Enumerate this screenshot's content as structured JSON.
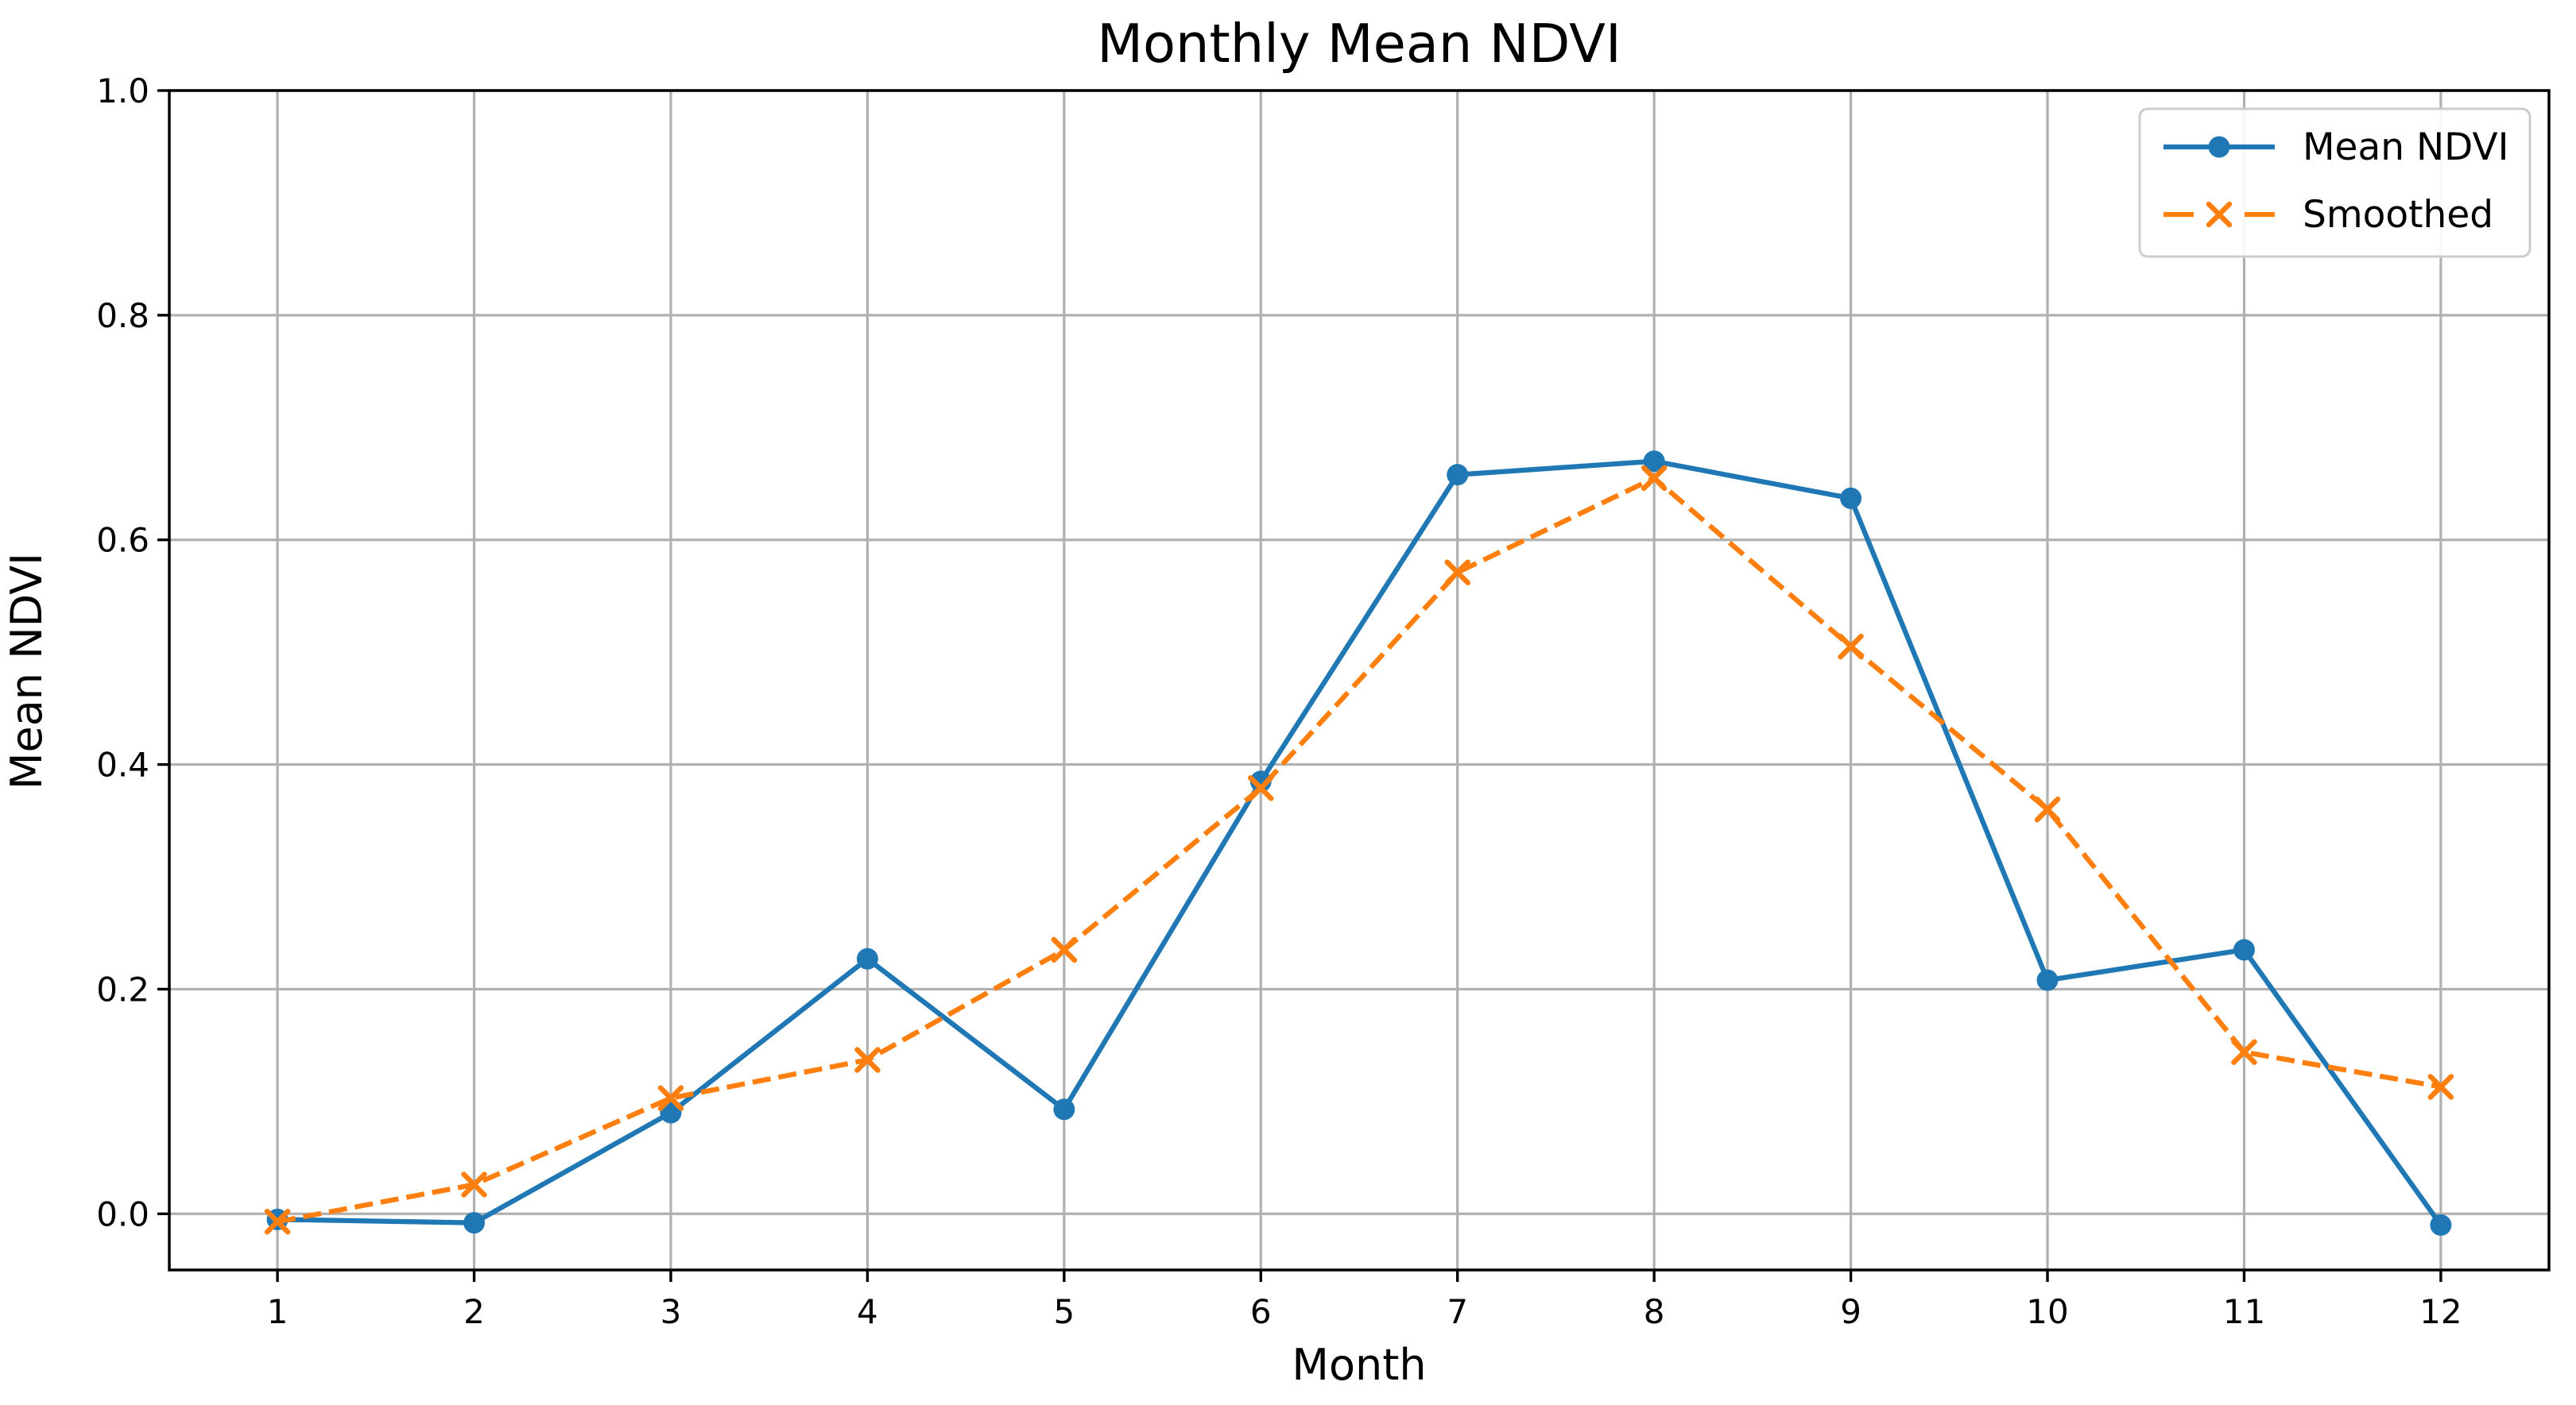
{
  "chart_data": {
    "type": "line",
    "title": "Monthly Mean NDVI",
    "xlabel": "Month",
    "ylabel": "Mean NDVI",
    "x": [
      1,
      2,
      3,
      4,
      5,
      6,
      7,
      8,
      9,
      10,
      11,
      12
    ],
    "xtick_labels": [
      "1",
      "2",
      "3",
      "4",
      "5",
      "6",
      "7",
      "8",
      "9",
      "10",
      "11",
      "12"
    ],
    "yticks": [
      0.0,
      0.2,
      0.4,
      0.6,
      0.8,
      1.0
    ],
    "ytick_labels": [
      "0.0",
      "0.2",
      "0.4",
      "0.6",
      "0.8",
      "1.0"
    ],
    "xlim": [
      0.45,
      12.55
    ],
    "ylim": [
      -0.05,
      1.0
    ],
    "grid": true,
    "legend_position": "upper right",
    "series": [
      {
        "name": "Mean NDVI",
        "color": "#1f77b4",
        "line_style": "solid",
        "marker": "circle",
        "values": [
          -0.005,
          -0.008,
          0.09,
          0.227,
          0.093,
          0.385,
          0.658,
          0.67,
          0.637,
          0.208,
          0.235,
          -0.01
        ]
      },
      {
        "name": "Smoothed",
        "color": "#ff7f0e",
        "line_style": "dashed",
        "marker": "x",
        "values": [
          -0.007,
          0.026,
          0.103,
          0.137,
          0.235,
          0.379,
          0.571,
          0.655,
          0.505,
          0.36,
          0.144,
          0.113
        ]
      }
    ],
    "colors": {
      "background": "#ffffff",
      "grid": "#b0b0b0",
      "spine": "#000000",
      "tick": "#000000",
      "legend_border": "#cccccc",
      "legend_background": "#ffffff"
    }
  }
}
